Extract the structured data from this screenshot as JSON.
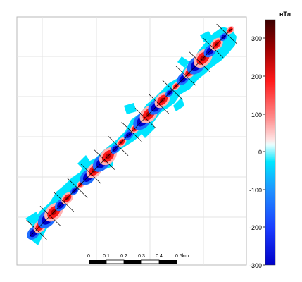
{
  "map": {
    "grid": true,
    "profile_count": 15
  },
  "scale_bar": {
    "labels": [
      "0",
      "0.1",
      "0.2",
      "0.3",
      "0.4",
      "0.5km"
    ]
  },
  "colorbar": {
    "unit": "нТл",
    "ticks": [
      "300",
      "200",
      "100",
      "0",
      "-100",
      "-200",
      "-300"
    ],
    "range": [
      -300,
      300
    ],
    "colors": {
      "min": "#0000c8",
      "low": "#1f6dff",
      "near_zero_neg": "#00e5ff",
      "zero": "#ffffff",
      "near_zero_pos": "#ffb3b3",
      "high": "#ff1a1a",
      "max": "#3a0000"
    }
  }
}
